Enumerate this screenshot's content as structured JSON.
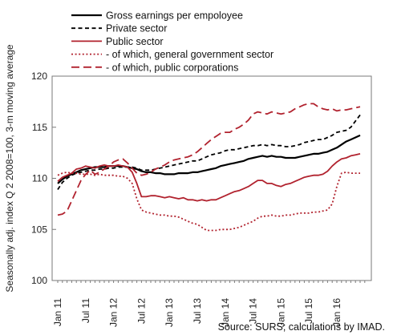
{
  "chart_data": {
    "type": "line",
    "title": "",
    "ylabel": "Seasonally adj. index Q 2 2008=100, 3-m moving average",
    "xlabel": "",
    "ylim": [
      100,
      120
    ],
    "yticks": [
      100,
      105,
      110,
      115,
      120
    ],
    "x_start": "Jan 11",
    "x_months": 66,
    "xticks": [
      {
        "label": "Jan 11",
        "month": 0
      },
      {
        "label": "Jul 11",
        "month": 6
      },
      {
        "label": "Jan 12",
        "month": 12
      },
      {
        "label": "Jul 12",
        "month": 18
      },
      {
        "label": "Jan 13",
        "month": 24
      },
      {
        "label": "Jul 13",
        "month": 30
      },
      {
        "label": "Jan 14",
        "month": 36
      },
      {
        "label": "Jul 14",
        "month": 42
      },
      {
        "label": "Jan 15",
        "month": 48
      },
      {
        "label": "Jul 15",
        "month": 54
      },
      {
        "label": "Jan 16",
        "month": 60
      }
    ],
    "legend_position": "top-left",
    "grid": false,
    "series": [
      {
        "name": "Gross earnings per empoloyee",
        "color": "#000000",
        "dash": "solid",
        "values": [
          109.5,
          109.9,
          110.2,
          110.4,
          110.6,
          110.8,
          110.9,
          111.0,
          111.1,
          111.1,
          111.1,
          111.2,
          111.2,
          111.2,
          111.2,
          111.1,
          111.0,
          110.9,
          110.7,
          110.6,
          110.6,
          110.5,
          110.5,
          110.4,
          110.4,
          110.4,
          110.5,
          110.5,
          110.5,
          110.6,
          110.6,
          110.7,
          110.8,
          110.9,
          111.0,
          111.2,
          111.3,
          111.4,
          111.5,
          111.6,
          111.7,
          111.9,
          112.0,
          112.1,
          112.2,
          112.1,
          112.2,
          112.1,
          112.1,
          112.0,
          112.0,
          112.0,
          112.1,
          112.2,
          112.3,
          112.4,
          112.4,
          112.5,
          112.6,
          112.8,
          113.0,
          113.3,
          113.6,
          113.8,
          114.0,
          114.2
        ]
      },
      {
        "name": "Private sector",
        "color": "#000000",
        "dash": "short-dash",
        "values": [
          108.9,
          109.6,
          110.0,
          110.3,
          110.5,
          110.6,
          110.7,
          110.8,
          110.8,
          110.9,
          110.9,
          111.0,
          111.0,
          111.1,
          111.1,
          111.1,
          111.1,
          111.0,
          110.8,
          110.8,
          110.8,
          110.9,
          111.0,
          111.1,
          111.2,
          111.3,
          111.4,
          111.5,
          111.6,
          111.7,
          111.7,
          111.9,
          112.1,
          112.3,
          112.4,
          112.5,
          112.7,
          112.8,
          112.8,
          112.9,
          113.0,
          113.1,
          113.2,
          113.2,
          113.3,
          113.2,
          113.3,
          113.2,
          113.2,
          113.1,
          113.1,
          113.2,
          113.3,
          113.5,
          113.6,
          113.7,
          113.8,
          113.8,
          114.0,
          114.2,
          114.5,
          114.6,
          114.7,
          115.0,
          115.6,
          116.2
        ]
      },
      {
        "name": "Public sector",
        "color": "#b1222e",
        "dash": "solid",
        "values": [
          109.7,
          110.1,
          110.3,
          110.5,
          110.9,
          111.0,
          111.2,
          111.1,
          111.0,
          111.2,
          111.3,
          111.2,
          111.2,
          111.3,
          111.2,
          111.1,
          110.6,
          109.5,
          108.2,
          108.2,
          108.3,
          108.3,
          108.2,
          108.1,
          108.2,
          108.1,
          108.0,
          108.1,
          107.9,
          107.9,
          107.8,
          107.9,
          107.8,
          107.9,
          107.9,
          108.1,
          108.3,
          108.5,
          108.7,
          108.8,
          109.0,
          109.2,
          109.5,
          109.8,
          109.8,
          109.5,
          109.5,
          109.3,
          109.2,
          109.4,
          109.5,
          109.7,
          109.9,
          110.1,
          110.2,
          110.3,
          110.3,
          110.4,
          110.7,
          111.2,
          111.6,
          111.9,
          112.0,
          112.2,
          112.3,
          112.4
        ]
      },
      {
        "name": "- of which, general government sector",
        "color": "#b1222e",
        "dash": "dotted",
        "values": [
          110.3,
          110.5,
          110.6,
          110.5,
          110.5,
          110.4,
          110.4,
          110.4,
          110.3,
          110.4,
          110.3,
          110.3,
          110.3,
          110.2,
          110.2,
          110.0,
          109.5,
          108.0,
          106.9,
          106.7,
          106.6,
          106.5,
          106.4,
          106.4,
          106.3,
          106.3,
          106.2,
          106.0,
          105.8,
          105.6,
          105.5,
          105.2,
          104.9,
          104.9,
          104.9,
          105.0,
          105.0,
          105.0,
          105.1,
          105.2,
          105.4,
          105.6,
          105.8,
          106.1,
          106.3,
          106.3,
          106.4,
          106.3,
          106.3,
          106.4,
          106.4,
          106.5,
          106.6,
          106.6,
          106.6,
          106.7,
          106.7,
          106.8,
          106.9,
          107.5,
          109.2,
          110.5,
          110.6,
          110.5,
          110.5,
          110.5
        ]
      },
      {
        "name": "- of which, public corporations",
        "color": "#b1222e",
        "dash": "long-dash",
        "values": [
          106.4,
          106.5,
          106.8,
          107.8,
          108.8,
          109.8,
          110.4,
          110.8,
          110.4,
          110.6,
          110.9,
          111.2,
          111.6,
          111.8,
          111.9,
          111.5,
          111.0,
          110.5,
          110.3,
          110.4,
          110.6,
          110.9,
          111.1,
          111.3,
          111.6,
          111.8,
          111.9,
          112.0,
          112.1,
          112.3,
          112.6,
          113.0,
          113.4,
          113.8,
          114.1,
          114.4,
          114.5,
          114.5,
          114.8,
          115.0,
          115.3,
          115.7,
          116.3,
          116.5,
          116.4,
          116.3,
          116.5,
          116.4,
          116.3,
          116.4,
          116.5,
          116.8,
          117.0,
          117.2,
          117.3,
          117.3,
          117.0,
          116.8,
          116.7,
          116.8,
          116.6,
          116.7,
          116.7,
          116.8,
          116.9,
          117.0
        ]
      }
    ]
  },
  "source": "Source: SURS; calculations by IMAD."
}
